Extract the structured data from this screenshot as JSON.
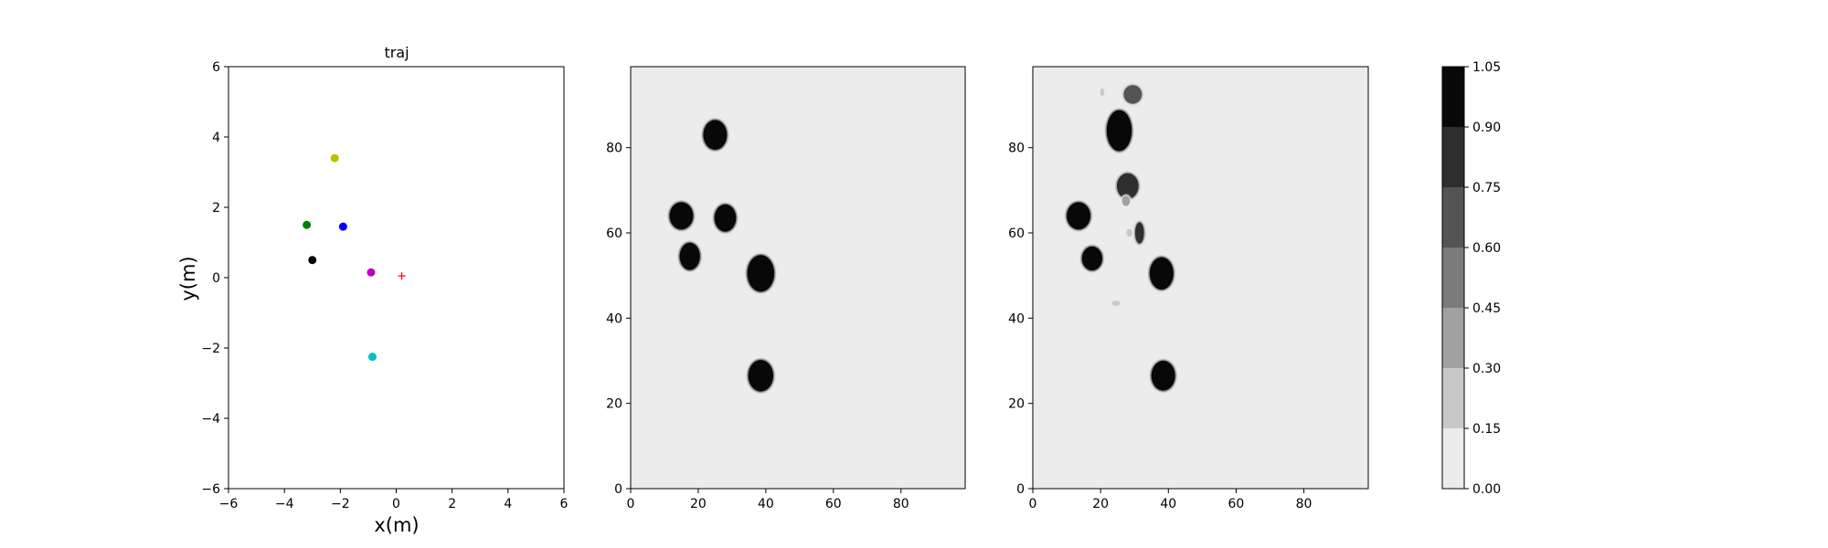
{
  "chart_data": [
    {
      "type": "scatter",
      "title": "traj",
      "xlabel": "x(m)",
      "ylabel": "y(m)",
      "xlim": [
        -6,
        6
      ],
      "ylim": [
        -6,
        6
      ],
      "xticks": [
        -6,
        -4,
        -2,
        0,
        2,
        4,
        6
      ],
      "yticks": [
        -6,
        -4,
        -2,
        0,
        2,
        4,
        6
      ],
      "grid": false,
      "points": [
        {
          "x": -2.2,
          "y": 3.4,
          "color": "#bfbf00",
          "marker": "circle"
        },
        {
          "x": -3.2,
          "y": 1.5,
          "color": "#008000",
          "marker": "circle"
        },
        {
          "x": -1.9,
          "y": 1.45,
          "color": "#0000ff",
          "marker": "circle"
        },
        {
          "x": -3.0,
          "y": 0.5,
          "color": "#000000",
          "marker": "circle"
        },
        {
          "x": -0.9,
          "y": 0.15,
          "color": "#bf00bf",
          "marker": "circle"
        },
        {
          "x": 0.2,
          "y": 0.05,
          "color": "#ff0000",
          "marker": "plus"
        },
        {
          "x": -0.85,
          "y": -2.25,
          "color": "#00bfbf",
          "marker": "circle"
        }
      ]
    },
    {
      "type": "heatmap",
      "xlim": [
        0,
        99
      ],
      "ylim": [
        0,
        99
      ],
      "xticks": [
        0,
        20,
        40,
        60,
        80
      ],
      "yticks": [
        0,
        20,
        40,
        60,
        80
      ],
      "background_level": 0.0,
      "blobs": [
        {
          "cx": 25,
          "cy": 83,
          "rx": 3.5,
          "ry": 3.5,
          "level": 1.0
        },
        {
          "cx": 15,
          "cy": 64,
          "rx": 3.5,
          "ry": 3.2,
          "level": 1.0
        },
        {
          "cx": 28,
          "cy": 63.5,
          "rx": 3.2,
          "ry": 3.2,
          "level": 1.0
        },
        {
          "cx": 17.5,
          "cy": 54.5,
          "rx": 3.0,
          "ry": 3.2,
          "level": 1.0
        },
        {
          "cx": 38.5,
          "cy": 50.5,
          "rx": 4.0,
          "ry": 4.3,
          "level": 1.0
        },
        {
          "cx": 38.5,
          "cy": 26.5,
          "rx": 3.7,
          "ry": 3.7,
          "level": 1.0
        }
      ]
    },
    {
      "type": "heatmap",
      "xlim": [
        0,
        99
      ],
      "ylim": [
        0,
        99
      ],
      "xticks": [
        0,
        20,
        40,
        60,
        80
      ],
      "yticks": [
        0,
        20,
        40,
        60,
        80
      ],
      "background_level": 0.0,
      "blobs": [
        {
          "cx": 20.5,
          "cy": 93,
          "rx": 0.6,
          "ry": 0.9,
          "level": 0.2
        },
        {
          "cx": 29.5,
          "cy": 92.5,
          "rx": 2.7,
          "ry": 2.2,
          "level": 0.7
        },
        {
          "cx": 25.5,
          "cy": 84,
          "rx": 3.7,
          "ry": 4.8,
          "level": 1.0
        },
        {
          "cx": 28,
          "cy": 71,
          "rx": 3.2,
          "ry": 3.0,
          "level": 0.85
        },
        {
          "cx": 27.5,
          "cy": 67.5,
          "rx": 1.2,
          "ry": 1.2,
          "level": 0.35
        },
        {
          "cx": 13.5,
          "cy": 64,
          "rx": 3.5,
          "ry": 3.2,
          "level": 1.0
        },
        {
          "cx": 31.5,
          "cy": 60,
          "rx": 1.3,
          "ry": 2.5,
          "level": 0.75
        },
        {
          "cx": 28.5,
          "cy": 60,
          "rx": 0.9,
          "ry": 0.9,
          "level": 0.2
        },
        {
          "cx": 17.5,
          "cy": 54,
          "rx": 3.0,
          "ry": 2.8,
          "level": 1.0
        },
        {
          "cx": 38,
          "cy": 50.5,
          "rx": 3.5,
          "ry": 3.8,
          "level": 1.0
        },
        {
          "cx": 24.5,
          "cy": 43.5,
          "rx": 1.2,
          "ry": 0.6,
          "level": 0.25
        },
        {
          "cx": 38.5,
          "cy": 26.5,
          "rx": 3.5,
          "ry": 3.5,
          "level": 1.0
        }
      ]
    }
  ],
  "colorbar": {
    "levels": [
      0.0,
      0.15,
      0.3,
      0.45,
      0.6,
      0.75,
      0.9,
      1.05
    ],
    "tick_labels": [
      "0.00",
      "0.15",
      "0.30",
      "0.45",
      "0.60",
      "0.75",
      "0.90",
      "1.05"
    ],
    "colors": [
      "#ececec",
      "#c8c8c8",
      "#a1a1a1",
      "#7b7b7b",
      "#545454",
      "#2e2e2e",
      "#080808"
    ]
  }
}
